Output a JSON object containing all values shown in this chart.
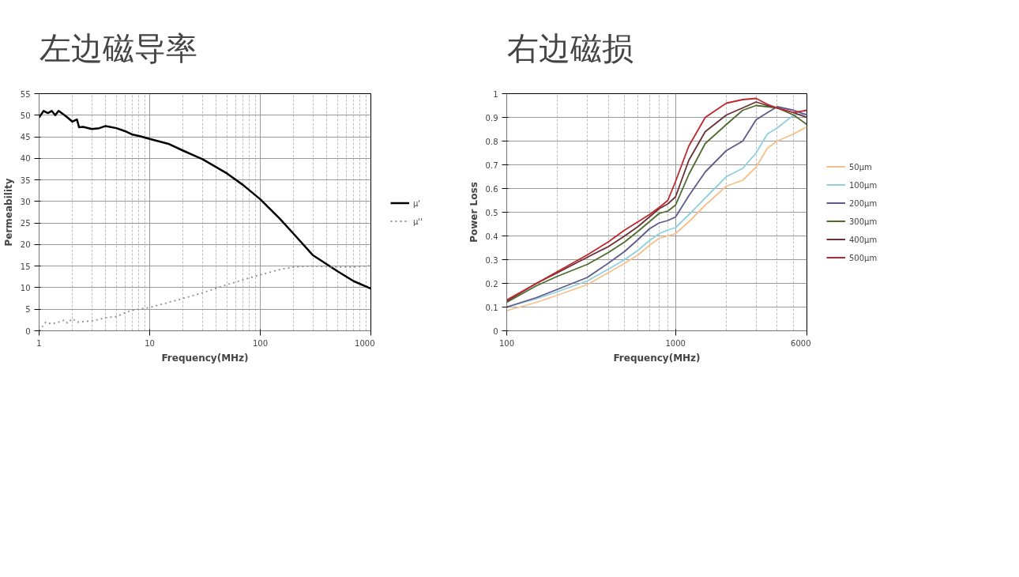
{
  "chart_data": [
    {
      "type": "line",
      "title": "左边磁导率",
      "xlabel": "Frequency(MHz)",
      "ylabel": "Permeability",
      "log": "x",
      "grid": true,
      "legend": "right",
      "xlim": [
        1,
        1000
      ],
      "xticks": [
        1,
        10,
        100,
        1000
      ],
      "ylim": [
        0,
        55
      ],
      "yticks": [
        0,
        5,
        10,
        15,
        20,
        25,
        30,
        35,
        40,
        45,
        50,
        55
      ],
      "series": [
        {
          "name": "μ'",
          "color": "#000000",
          "line_style": "solid",
          "x": [
            1,
            1.1,
            1.2,
            1.3,
            1.4,
            1.5,
            1.7,
            1.8,
            2,
            2.2,
            2.3,
            2.5,
            3,
            3.5,
            4,
            5,
            6,
            7,
            8,
            10,
            15,
            20,
            30,
            50,
            70,
            100,
            150,
            200,
            300,
            500,
            700,
            1000
          ],
          "values": [
            49.5,
            51,
            50.5,
            51,
            50,
            51,
            50,
            49.5,
            48.5,
            49,
            47.2,
            47.3,
            46.8,
            47,
            47.5,
            47,
            46.3,
            45.5,
            45.2,
            44.5,
            43.3,
            41.8,
            39.8,
            36.5,
            33.8,
            30.5,
            26,
            22.5,
            17.5,
            13.8,
            11.5,
            9.8
          ]
        },
        {
          "name": "μ''",
          "color": "#909090",
          "line_style": "dotted",
          "x": [
            1,
            1.15,
            1.3,
            1.5,
            1.7,
            1.8,
            2,
            2.2,
            3,
            4,
            5,
            6,
            7,
            10,
            20,
            30,
            50,
            100,
            150,
            200,
            300,
            500,
            700,
            1000
          ],
          "values": [
            0,
            2,
            1.6,
            2,
            2.5,
            1.8,
            2.8,
            2,
            2.3,
            3,
            3.3,
            4.2,
            4.8,
            5.4,
            7.5,
            8.8,
            10.7,
            13,
            14.2,
            14.8,
            15,
            14.8,
            14.8,
            15.1
          ]
        }
      ]
    },
    {
      "type": "line",
      "title": "右边磁损",
      "xlabel": "Frequency(MHz)",
      "ylabel": "Power Loss",
      "log": "x",
      "grid": true,
      "legend": "right",
      "xlim": [
        100,
        6000
      ],
      "xticks": [
        100,
        1000,
        6000
      ],
      "ylim": [
        0,
        1
      ],
      "yticks": [
        0,
        0.1,
        0.2,
        0.3,
        0.4,
        0.5,
        0.6,
        0.7,
        0.8,
        0.9,
        1
      ],
      "x": [
        100,
        150,
        200,
        300,
        400,
        500,
        600,
        700,
        800,
        900,
        1000,
        1200,
        1500,
        2000,
        2500,
        3000,
        3500,
        4000,
        5000,
        6000
      ],
      "series": [
        {
          "name": "50μm",
          "color": "#f5c08a",
          "line_style": "solid",
          "values": [
            0.085,
            0.12,
            0.15,
            0.195,
            0.245,
            0.285,
            0.32,
            0.36,
            0.39,
            0.4,
            0.41,
            0.46,
            0.53,
            0.61,
            0.635,
            0.69,
            0.77,
            0.8,
            0.83,
            0.86
          ]
        },
        {
          "name": "100μm",
          "color": "#8fd0dc",
          "line_style": "solid",
          "values": [
            0.1,
            0.135,
            0.165,
            0.21,
            0.26,
            0.3,
            0.34,
            0.38,
            0.41,
            0.425,
            0.435,
            0.49,
            0.56,
            0.65,
            0.685,
            0.75,
            0.83,
            0.855,
            0.91,
            0.915
          ]
        },
        {
          "name": "200μm",
          "color": "#5e5a8c",
          "line_style": "solid",
          "values": [
            0.1,
            0.14,
            0.175,
            0.225,
            0.285,
            0.335,
            0.385,
            0.43,
            0.455,
            0.465,
            0.48,
            0.57,
            0.67,
            0.76,
            0.8,
            0.89,
            0.92,
            0.945,
            0.93,
            0.91
          ]
        },
        {
          "name": "300μm",
          "color": "#4f6b2e",
          "line_style": "solid",
          "values": [
            0.12,
            0.19,
            0.23,
            0.28,
            0.33,
            0.375,
            0.42,
            0.46,
            0.495,
            0.505,
            0.53,
            0.66,
            0.79,
            0.87,
            0.93,
            0.95,
            0.945,
            0.94,
            0.91,
            0.87
          ]
        },
        {
          "name": "400μm",
          "color": "#6b3036",
          "line_style": "solid",
          "values": [
            0.125,
            0.2,
            0.245,
            0.31,
            0.355,
            0.4,
            0.44,
            0.48,
            0.515,
            0.535,
            0.565,
            0.72,
            0.84,
            0.91,
            0.94,
            0.965,
            0.95,
            0.94,
            0.92,
            0.9
          ]
        },
        {
          "name": "500μm",
          "color": "#c0272d",
          "line_style": "solid",
          "values": [
            0.13,
            0.2,
            0.25,
            0.32,
            0.375,
            0.425,
            0.46,
            0.49,
            0.52,
            0.55,
            0.63,
            0.78,
            0.9,
            0.96,
            0.975,
            0.98,
            0.955,
            0.94,
            0.92,
            0.93
          ]
        }
      ]
    }
  ]
}
